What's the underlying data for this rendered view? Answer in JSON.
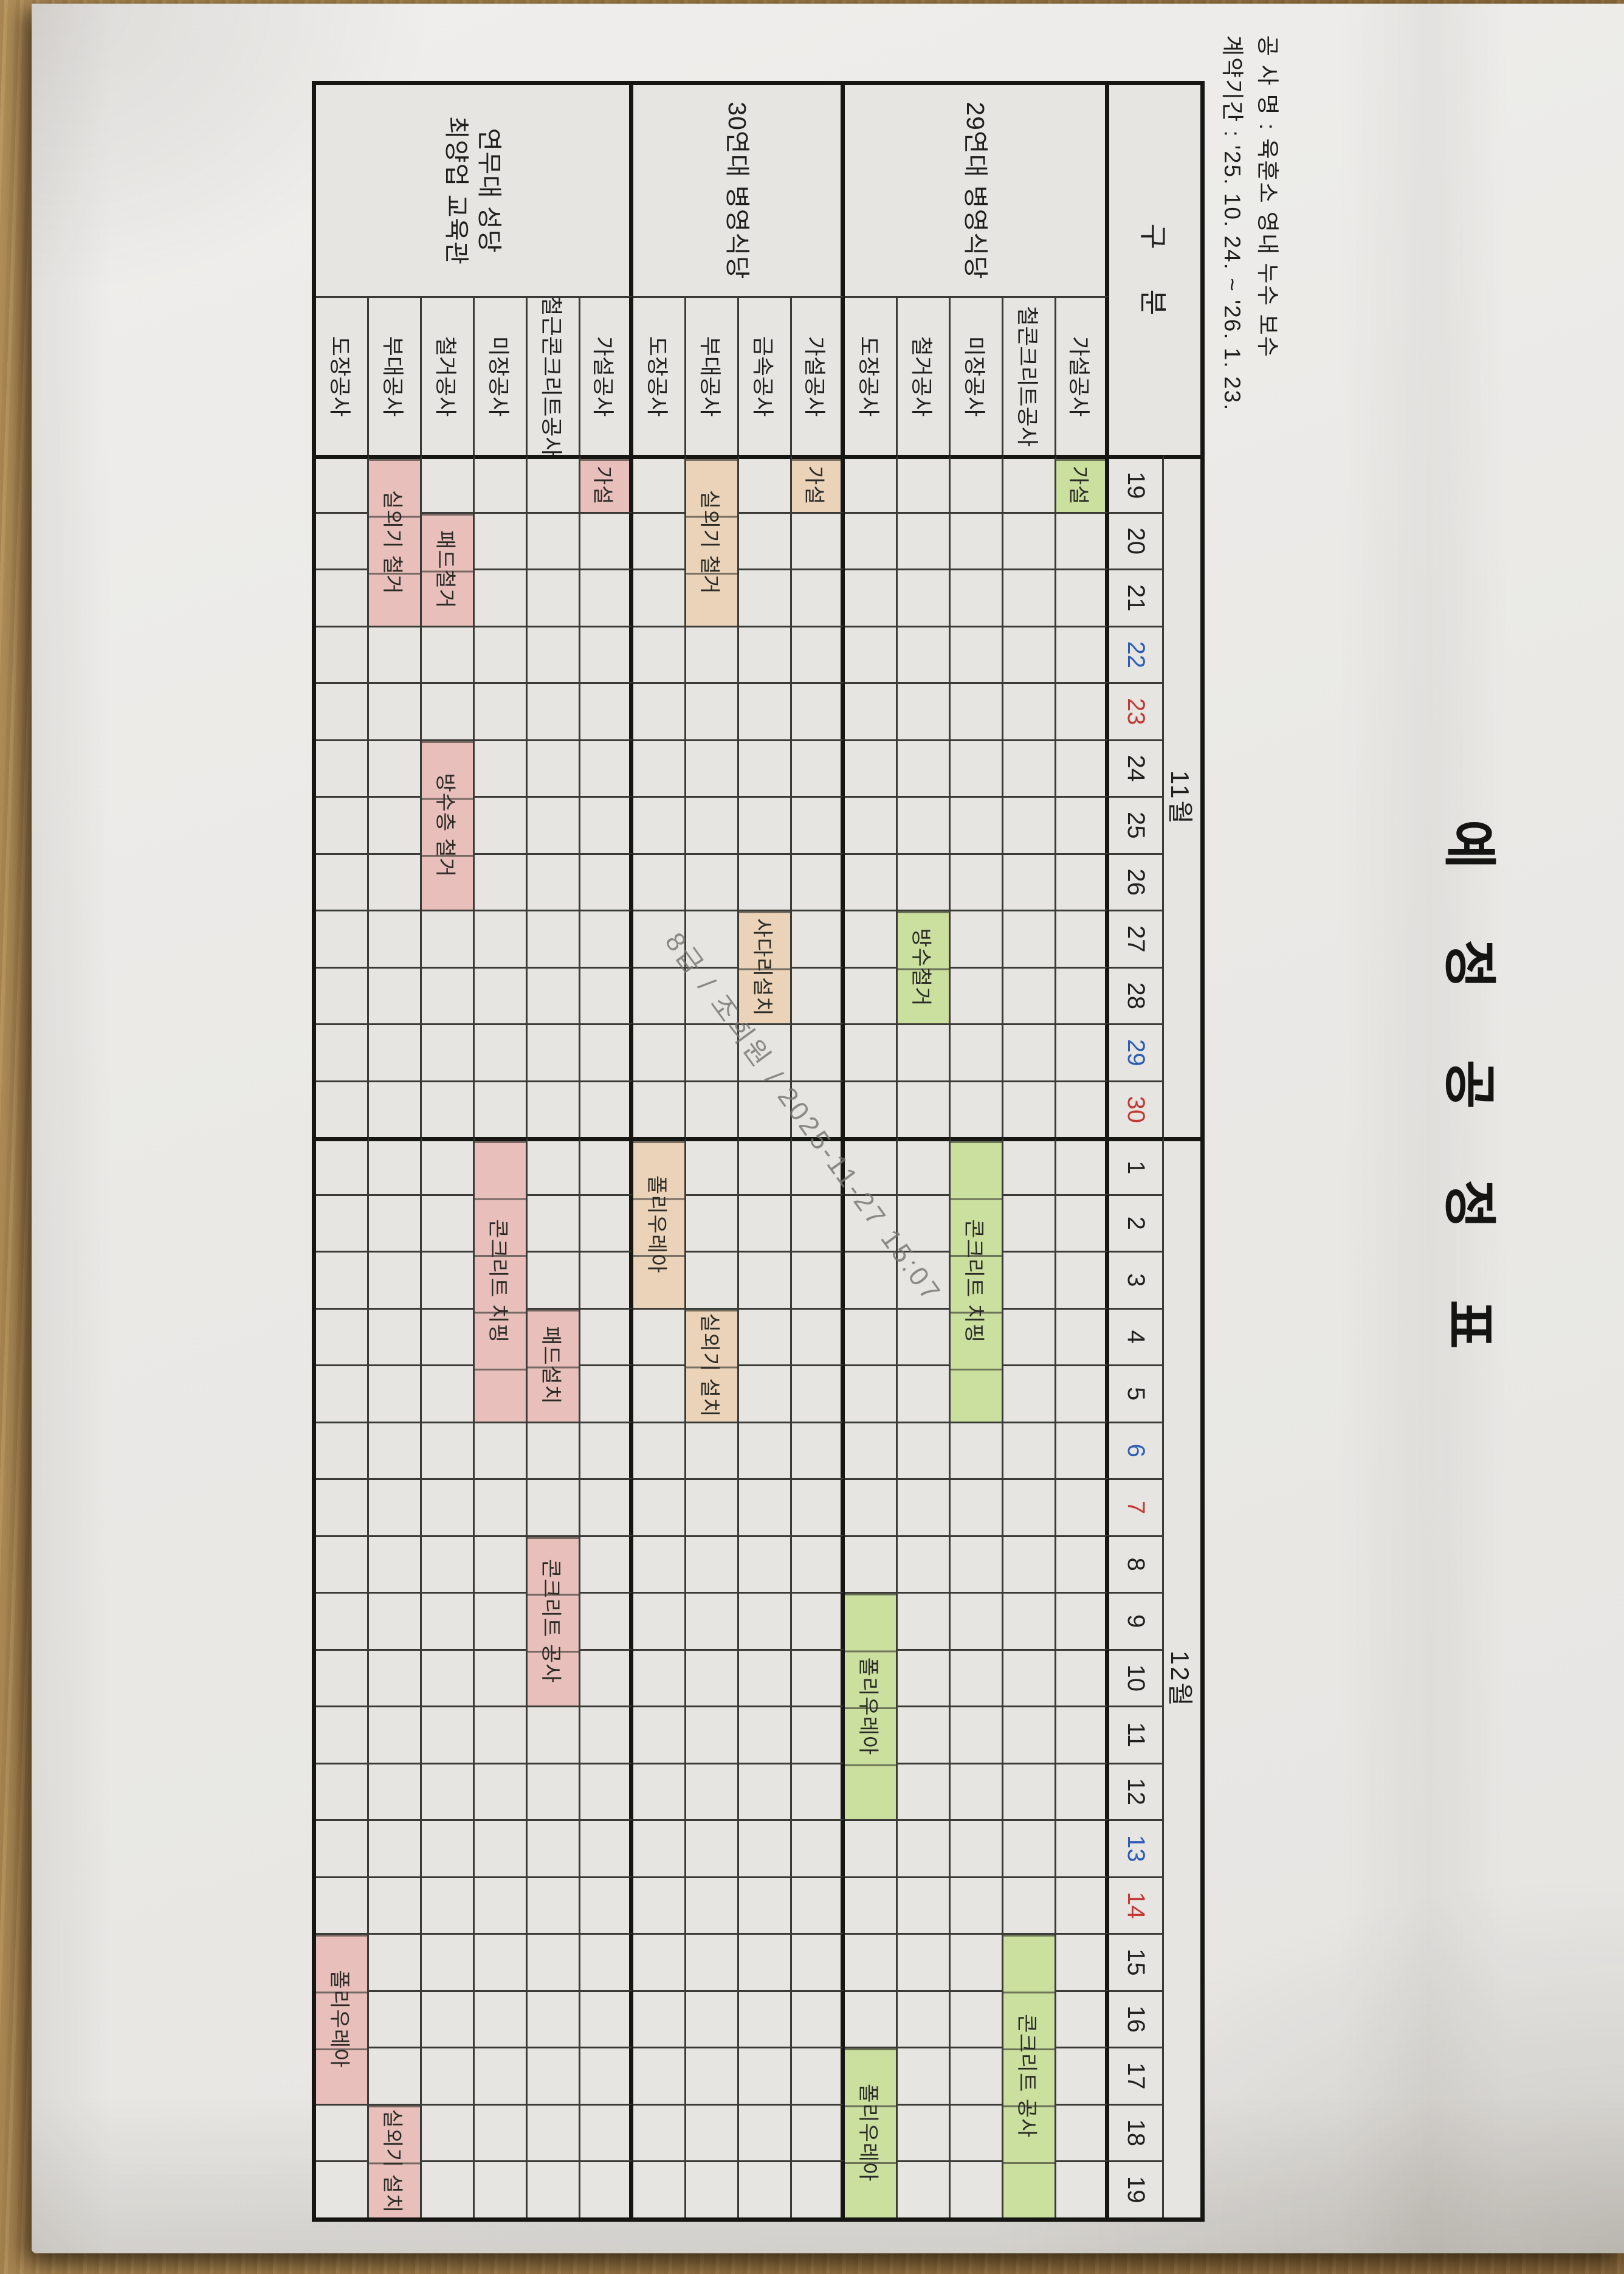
{
  "title": "예 정 공 정 표",
  "header": {
    "line1": "공 사 명 : 육훈소 영내 누수 보수",
    "line2": "계약기간 : '25. 10. 24.  ~  '26. 1. 23."
  },
  "watermark": "8급 / 조희원 / 2025-11-27 15:07",
  "colors": {
    "green": "#cbdf9e",
    "tan": "#ead3b8",
    "pink": "#e8bfba",
    "saturday": "#2d5cb5",
    "sunday": "#c23a33"
  },
  "chart_data": {
    "type": "table",
    "subtype": "gantt-schedule",
    "corner_label": "구 분",
    "months": [
      {
        "label": "11월",
        "day_count": 12
      },
      {
        "label": "12월",
        "day_count": 19
      }
    ],
    "days": [
      {
        "n": 19
      },
      {
        "n": 20
      },
      {
        "n": 21
      },
      {
        "n": 22,
        "wk": "sat"
      },
      {
        "n": 23,
        "wk": "sun"
      },
      {
        "n": 24
      },
      {
        "n": 25
      },
      {
        "n": 26
      },
      {
        "n": 27
      },
      {
        "n": 28
      },
      {
        "n": 29,
        "wk": "sat"
      },
      {
        "n": 30,
        "wk": "sun"
      },
      {
        "n": 1
      },
      {
        "n": 2
      },
      {
        "n": 3
      },
      {
        "n": 4
      },
      {
        "n": 5
      },
      {
        "n": 6,
        "wk": "sat"
      },
      {
        "n": 7,
        "wk": "sun"
      },
      {
        "n": 8
      },
      {
        "n": 9
      },
      {
        "n": 10
      },
      {
        "n": 11
      },
      {
        "n": 12
      },
      {
        "n": 13,
        "wk": "sat"
      },
      {
        "n": 14,
        "wk": "sun"
      },
      {
        "n": 15
      },
      {
        "n": 16
      },
      {
        "n": 17
      },
      {
        "n": 18
      },
      {
        "n": 19
      }
    ],
    "groups": [
      {
        "name": "29연대 병영식당",
        "color": "green",
        "rows": [
          "가설공사",
          "철콘크리트공사",
          "미장공사",
          "철거공사",
          "도장공사"
        ]
      },
      {
        "name": "30연대 병영식당",
        "color": "tan",
        "rows": [
          "가설공사",
          "금속공사",
          "부대공사",
          "도장공사"
        ]
      },
      {
        "name": "연무대 성당\n최양업 교육관",
        "color": "pink",
        "rows": [
          "가설공사",
          "철근콘크리트공사",
          "미장공사",
          "철거공사",
          "부대공사",
          "도장공사"
        ]
      }
    ],
    "bars": [
      {
        "row": 0,
        "start": 0,
        "len": 1,
        "label": "가설"
      },
      {
        "row": 3,
        "start": 8,
        "len": 2,
        "label": "방수철거"
      },
      {
        "row": 2,
        "start": 12,
        "len": 5,
        "label": "콘크리트 치핑"
      },
      {
        "row": 4,
        "start": 20,
        "len": 4,
        "label": "폴리우레아"
      },
      {
        "row": 1,
        "start": 26,
        "len": 5,
        "label": "콘크리트 공사"
      },
      {
        "row": 4,
        "start": 28,
        "len": 3,
        "label": "폴리우레아"
      },
      {
        "row": 5,
        "start": 0,
        "len": 1,
        "label": "가설"
      },
      {
        "row": 7,
        "start": 0,
        "len": 3,
        "label": "실외기 철거"
      },
      {
        "row": 6,
        "start": 8,
        "len": 2,
        "label": "사다리설치"
      },
      {
        "row": 8,
        "start": 12,
        "len": 3,
        "label": "폴리우레아"
      },
      {
        "row": 7,
        "start": 15,
        "len": 2,
        "label": "실외기 설치"
      },
      {
        "row": 9,
        "start": 0,
        "len": 1,
        "label": "가설"
      },
      {
        "row": 13,
        "start": 0,
        "len": 3,
        "label": "실외기 철거"
      },
      {
        "row": 12,
        "start": 1,
        "len": 2,
        "label": "패드철거"
      },
      {
        "row": 12,
        "start": 5,
        "len": 3,
        "label": "방수층 철거"
      },
      {
        "row": 11,
        "start": 12,
        "len": 5,
        "label": "콘크리트 치핑"
      },
      {
        "row": 10,
        "start": 15,
        "len": 2,
        "label": "패드설치"
      },
      {
        "row": 10,
        "start": 19,
        "len": 3,
        "label": "콘크리트 공사"
      },
      {
        "row": 14,
        "start": 26,
        "len": 3,
        "label": "폴리우레아"
      },
      {
        "row": 13,
        "start": 29,
        "len": 2,
        "label": "실외기 설치"
      }
    ],
    "layout": {
      "group_col_w": 347,
      "work_col_w": 261,
      "day_w": 93.5,
      "month_row_h": 60,
      "date_row_h": 90,
      "body_row_h": 87
    }
  }
}
